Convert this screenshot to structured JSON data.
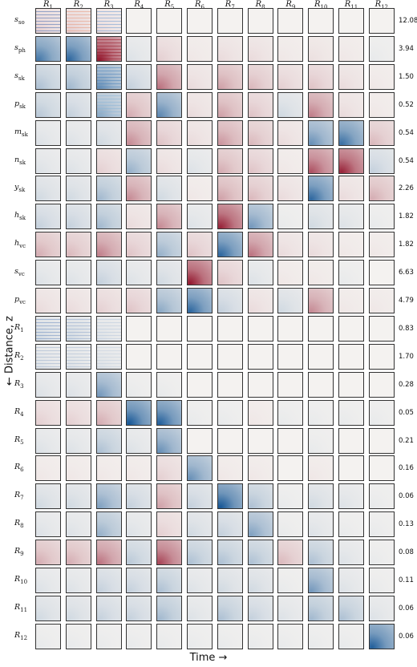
{
  "chart_data": {
    "type": "heatmap",
    "xlabel": "Time →",
    "ylabel": "← Distance, z",
    "columns": [
      {
        "sym": "R",
        "sub": "1"
      },
      {
        "sym": "R",
        "sub": "2"
      },
      {
        "sym": "R",
        "sub": "3"
      },
      {
        "sym": "R",
        "sub": "4"
      },
      {
        "sym": "R",
        "sub": "5"
      },
      {
        "sym": "R",
        "sub": "6"
      },
      {
        "sym": "R",
        "sub": "7"
      },
      {
        "sym": "R",
        "sub": "8"
      },
      {
        "sym": "R",
        "sub": "9"
      },
      {
        "sym": "R",
        "sub": "10"
      },
      {
        "sym": "R",
        "sub": "11"
      },
      {
        "sym": "R",
        "sub": "12"
      }
    ],
    "rows": [
      {
        "sym": "s",
        "sub": "so",
        "scale": "12.08"
      },
      {
        "sym": "s",
        "sub": "ph",
        "scale": "3.94"
      },
      {
        "sym": "s",
        "sub": "sk",
        "scale": "1.50"
      },
      {
        "sym": "p",
        "sub": "sk",
        "scale": "0.52"
      },
      {
        "sym": "m",
        "sub": "sk",
        "scale": "0.54"
      },
      {
        "sym": "n",
        "sub": "sk",
        "scale": "0.54"
      },
      {
        "sym": "y",
        "sub": "sk",
        "scale": "2.26"
      },
      {
        "sym": "h",
        "sub": "sk",
        "scale": "1.82"
      },
      {
        "sym": "h",
        "sub": "vc",
        "scale": "1.82"
      },
      {
        "sym": "s",
        "sub": "vc",
        "scale": "6.63"
      },
      {
        "sym": "p",
        "sub": "vc",
        "scale": "4.79"
      },
      {
        "sym": "R",
        "sub": "1",
        "scale": "0.83"
      },
      {
        "sym": "R",
        "sub": "2",
        "scale": "1.70"
      },
      {
        "sym": "R",
        "sub": "3",
        "scale": "0.28"
      },
      {
        "sym": "R",
        "sub": "4",
        "scale": "0.05"
      },
      {
        "sym": "R",
        "sub": "5",
        "scale": "0.21"
      },
      {
        "sym": "R",
        "sub": "6",
        "scale": "0.16"
      },
      {
        "sym": "R",
        "sub": "7",
        "scale": "0.06"
      },
      {
        "sym": "R",
        "sub": "8",
        "scale": "0.13"
      },
      {
        "sym": "R",
        "sub": "9",
        "scale": "0.08"
      },
      {
        "sym": "R",
        "sub": "10",
        "scale": "0.11"
      },
      {
        "sym": "R",
        "sub": "11",
        "scale": "0.06"
      },
      {
        "sym": "R",
        "sub": "12",
        "scale": "0.06"
      }
    ],
    "values": [
      [
        0.15,
        0.15,
        0.1,
        0,
        0,
        0,
        0,
        0,
        0,
        0,
        0,
        0
      ],
      [
        -0.75,
        -0.85,
        0.95,
        -0.1,
        0.15,
        0.05,
        0.1,
        0.1,
        0.05,
        0.08,
        0.05,
        -0.05
      ],
      [
        -0.3,
        -0.35,
        -0.6,
        -0.2,
        0.55,
        0.1,
        0.35,
        0.25,
        0.15,
        0.2,
        0.1,
        0.05
      ],
      [
        -0.25,
        -0.2,
        -0.45,
        0.3,
        -0.65,
        0.1,
        0.35,
        0.2,
        -0.15,
        0.5,
        0.1,
        0.05
      ],
      [
        -0.1,
        -0.1,
        -0.15,
        0.45,
        0.2,
        0.1,
        0.4,
        0.25,
        0.1,
        -0.6,
        -0.8,
        0.25
      ],
      [
        -0.1,
        -0.1,
        0.15,
        -0.4,
        0.1,
        -0.1,
        0.3,
        0.2,
        0.05,
        0.7,
        0.9,
        -0.2
      ],
      [
        -0.15,
        -0.15,
        -0.35,
        0.45,
        -0.15,
        0.05,
        0.35,
        0.25,
        0.1,
        -0.85,
        0.1,
        0.3
      ],
      [
        -0.2,
        -0.2,
        -0.35,
        0.1,
        0.45,
        -0.1,
        0.9,
        -0.55,
        -0.05,
        -0.15,
        -0.1,
        -0.05
      ],
      [
        0.3,
        0.25,
        0.5,
        0.2,
        -0.4,
        0.2,
        -0.85,
        0.55,
        0.1,
        0.1,
        0.05,
        0.05
      ],
      [
        -0.1,
        -0.1,
        -0.2,
        -0.1,
        -0.15,
        0.95,
        0.2,
        -0.1,
        0.05,
        0.05,
        -0.05,
        0
      ],
      [
        0.1,
        0.1,
        0.15,
        0.2,
        -0.45,
        -0.85,
        -0.2,
        0.1,
        -0.15,
        0.45,
        0.05,
        0.05
      ],
      [
        -0.15,
        -0.15,
        -0.1,
        0,
        0,
        0,
        0,
        0,
        0,
        0,
        0,
        0
      ],
      [
        -0.1,
        -0.1,
        -0.1,
        0,
        0,
        0,
        0,
        0,
        0,
        0,
        0,
        0
      ],
      [
        -0.1,
        -0.1,
        -0.55,
        -0.05,
        -0.05,
        0,
        0,
        0,
        0,
        0,
        0,
        0
      ],
      [
        0.15,
        0.15,
        0.3,
        -0.95,
        -0.9,
        -0.05,
        -0.05,
        0.05,
        -0.05,
        -0.05,
        -0.05,
        -0.05
      ],
      [
        -0.1,
        -0.1,
        -0.3,
        -0.1,
        -0.6,
        0,
        0,
        0,
        0,
        -0.05,
        0,
        0
      ],
      [
        0.05,
        0.05,
        0.05,
        0.05,
        0.15,
        -0.6,
        0.05,
        0.05,
        0,
        0.05,
        0,
        0
      ],
      [
        -0.15,
        -0.15,
        -0.5,
        -0.2,
        0.35,
        -0.2,
        -0.95,
        -0.3,
        -0.05,
        -0.15,
        -0.1,
        -0.05
      ],
      [
        -0.1,
        -0.1,
        -0.4,
        -0.1,
        0.15,
        -0.15,
        -0.2,
        -0.5,
        -0.05,
        -0.1,
        -0.05,
        -0.05
      ],
      [
        0.3,
        0.3,
        0.55,
        -0.25,
        0.75,
        -0.3,
        -0.3,
        -0.3,
        0.25,
        -0.3,
        -0.1,
        -0.05
      ],
      [
        -0.1,
        -0.1,
        -0.2,
        -0.2,
        -0.3,
        -0.1,
        -0.15,
        -0.15,
        -0.05,
        -0.55,
        -0.1,
        -0.05
      ],
      [
        -0.15,
        -0.15,
        -0.2,
        -0.2,
        -0.35,
        -0.1,
        -0.3,
        -0.2,
        -0.1,
        -0.35,
        -0.3,
        -0.1
      ],
      [
        -0.05,
        -0.05,
        -0.05,
        -0.05,
        -0.05,
        -0.05,
        -0.05,
        -0.05,
        -0.05,
        -0.05,
        -0.05,
        -0.9
      ]
    ],
    "striped_cells": [
      {
        "row": 0,
        "col": 0,
        "color": "#4d6fb0"
      },
      {
        "row": 0,
        "col": 1,
        "color": "#e89a7f"
      },
      {
        "row": 0,
        "col": 2,
        "color": "#6f9bd0"
      },
      {
        "row": 1,
        "col": 2,
        "color": "#9a1b2a"
      },
      {
        "row": 2,
        "col": 2,
        "color": "#4f86bd"
      },
      {
        "row": 3,
        "col": 2,
        "color": "#8cb6d8"
      },
      {
        "row": 11,
        "col": 0,
        "color": "#6f8fc0"
      },
      {
        "row": 11,
        "col": 1,
        "color": "#90a8cc"
      },
      {
        "row": 11,
        "col": 2,
        "color": "#b8c8dc"
      },
      {
        "row": 12,
        "col": 0,
        "color": "#9fb2cc"
      },
      {
        "row": 12,
        "col": 1,
        "color": "#a9bbd2"
      },
      {
        "row": 12,
        "col": 2,
        "color": "#c4d0de"
      }
    ],
    "colormap": {
      "negative": "#0b4f91",
      "neutral": "#f4f2f0",
      "positive": "#8e0c25"
    }
  }
}
